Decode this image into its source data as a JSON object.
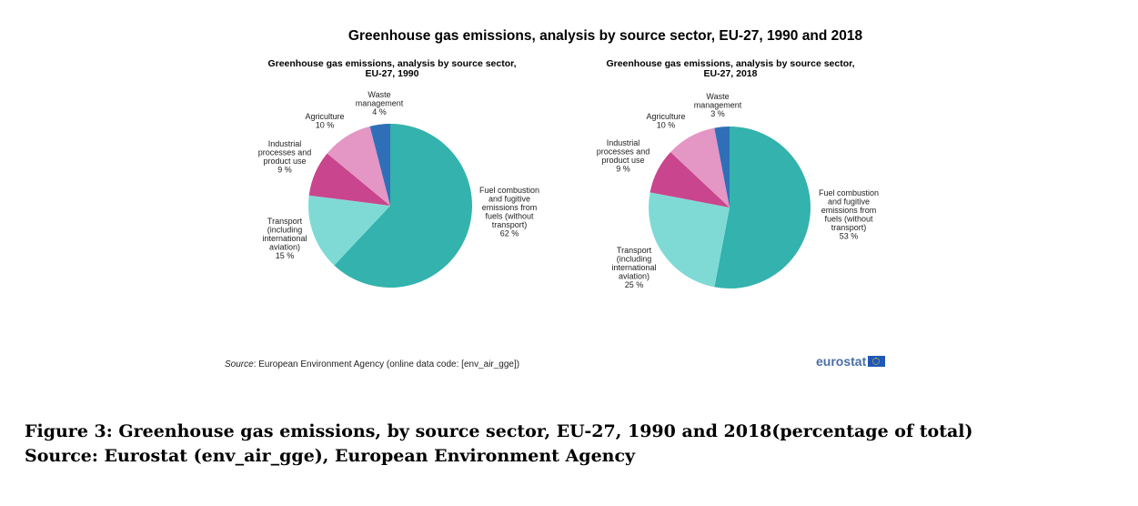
{
  "main_title": "Greenhouse gas emissions, analysis by source sector, EU-27, 1990 and 2018",
  "chart_data": [
    {
      "type": "pie",
      "title_line1": "Greenhouse gas emissions, analysis by source sector,",
      "title_line2": "EU-27, 1990",
      "slices": [
        {
          "label_lines": [
            "Fuel combustion",
            "and fugitive",
            "emissions from",
            "fuels (without",
            "transport)",
            "62 %"
          ],
          "value": 62,
          "color": "#34b2ad"
        },
        {
          "label_lines": [
            "Transport",
            "(including",
            "international",
            "aviation)",
            "15 %"
          ],
          "value": 15,
          "color": "#7fdad6"
        },
        {
          "label_lines": [
            "Industrial",
            "processes and",
            "product use",
            "9 %"
          ],
          "value": 9,
          "color": "#c9458e"
        },
        {
          "label_lines": [
            "Agriculture",
            "10 %"
          ],
          "value": 10,
          "color": "#e496c4"
        },
        {
          "label_lines": [
            "Waste",
            "management",
            "4 %"
          ],
          "value": 4,
          "color": "#2e6fb8"
        }
      ]
    },
    {
      "type": "pie",
      "title_line1": "Greenhouse gas emissions, analysis by source sector,",
      "title_line2": "EU-27, 2018",
      "slices": [
        {
          "label_lines": [
            "Fuel combustion",
            "and fugitive",
            "emissions from",
            "fuels (without",
            "transport)",
            "53 %"
          ],
          "value": 53,
          "color": "#34b2ad"
        },
        {
          "label_lines": [
            "Transport",
            "(including",
            "international",
            "aviation)",
            "25 %"
          ],
          "value": 25,
          "color": "#7fdad6"
        },
        {
          "label_lines": [
            "Industrial",
            "processes and",
            "product use",
            "9 %"
          ],
          "value": 9,
          "color": "#c9458e"
        },
        {
          "label_lines": [
            "Agriculture",
            "10 %"
          ],
          "value": 10,
          "color": "#e496c4"
        },
        {
          "label_lines": [
            "Waste",
            "management",
            "3 %"
          ],
          "value": 3,
          "color": "#2e6fb8"
        }
      ]
    }
  ],
  "source_prefix": "Source",
  "source_text": ": European Environment  Agency (online data code:  [env_air_gge])",
  "logo_text": "eurostat",
  "caption_line1": "Figure 3: Greenhouse gas emissions, by source sector, EU-27, 1990 and 2018(percentage of total)",
  "caption_line2": "Source: Eurostat (env_air_gge), European Environment Agency"
}
